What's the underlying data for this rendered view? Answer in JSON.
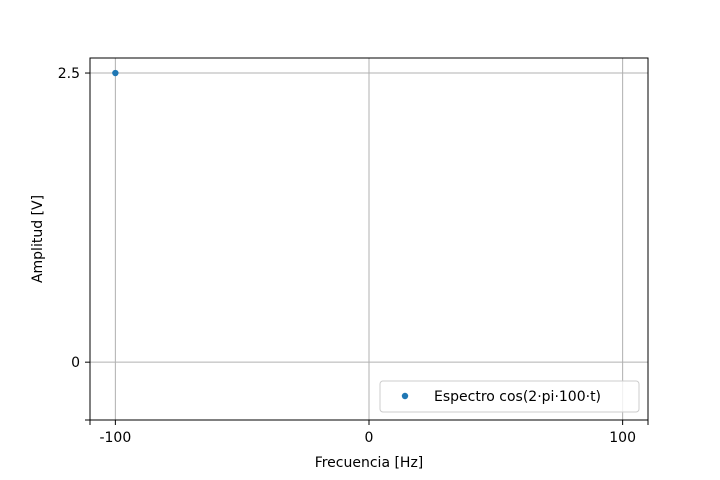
{
  "chart_data": {
    "type": "scatter",
    "xlabel": "Frecuencia [Hz]",
    "ylabel": "Amplitud [V]",
    "xlim": [
      -110,
      110
    ],
    "ylim": [
      -0.5,
      2.63
    ],
    "xticks": [
      -100,
      0,
      100
    ],
    "xtick_labels": [
      "-100",
      "0",
      "100"
    ],
    "yticks": [
      0,
      2.5
    ],
    "ytick_labels": [
      "0",
      "2.5"
    ],
    "grid": true,
    "legend_position": "lower-right",
    "series": [
      {
        "name": "Espectro cos(2·pi·100·t)",
        "color": "#1f77b4",
        "marker": "circle",
        "points": [
          [
            -100,
            2.5
          ]
        ]
      }
    ]
  }
}
